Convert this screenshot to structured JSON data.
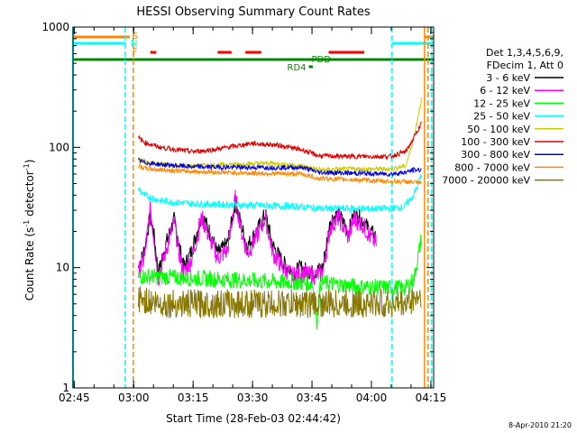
{
  "chart_data": {
    "type": "line",
    "title": "HESSI Observing Summary Count Rates",
    "xlabel": "Start Time (28-Feb-03 02:44:42)",
    "ylabel_main": "Count Rate (s",
    "ylabel_sup1": "-1",
    "ylabel_mid": " detector",
    "ylabel_sup2": "-1",
    "ylabel_end": ")",
    "y_scale": "log",
    "ylim": [
      1,
      1000
    ],
    "x_range_minutes": [
      0,
      91
    ],
    "x_ticks": [
      {
        "t": 0.3,
        "label": "02:45"
      },
      {
        "t": 15.3,
        "label": "03:00"
      },
      {
        "t": 30.3,
        "label": "03:15"
      },
      {
        "t": 45.3,
        "label": "03:30"
      },
      {
        "t": 60.3,
        "label": "03:45"
      },
      {
        "t": 75.3,
        "label": "04:00"
      },
      {
        "t": 90.3,
        "label": "04:15"
      }
    ],
    "y_ticks": [
      {
        "v": 1,
        "label": "1"
      },
      {
        "v": 10,
        "label": "10"
      },
      {
        "v": 100,
        "label": "100"
      },
      {
        "v": 1000,
        "label": "1000"
      }
    ],
    "legend": {
      "placement": "right",
      "header1": "Det 1,3,4,5,6,9,",
      "header2": "FDecim 1, Att 0",
      "entries": [
        {
          "label": "3 - 6 keV",
          "color": "#000000"
        },
        {
          "label": "6 - 12 keV",
          "color": "#ff00ff"
        },
        {
          "label": "12 - 25 keV",
          "color": "#00ff00"
        },
        {
          "label": "25 - 50 keV",
          "color": "#00ffff"
        },
        {
          "label": "50 - 100 keV",
          "color": "#cccc00"
        },
        {
          "label": "100 - 300 keV",
          "color": "#dd0000"
        },
        {
          "label": "300 - 800 keV",
          "color": "#0000dd"
        },
        {
          "label": "800 - 7000 keV",
          "color": "#ff8800"
        },
        {
          "label": "7000 - 20000 keV",
          "color": "#887700"
        }
      ]
    },
    "flag_labels": {
      "S": {
        "text": "S",
        "color": "#ff8800"
      },
      "N": {
        "text": "N",
        "color": "#00ffff"
      },
      "F": {
        "text": "F",
        "color": "#ff8800"
      },
      "PDD": {
        "text": "PDD",
        "color": "#008800"
      },
      "RD4": {
        "text": "RD4",
        "color": "#008800"
      }
    },
    "flags": {
      "saa_S": [
        [
          0,
          14.3
        ],
        [
          88.7,
          91
        ]
      ],
      "night_N": [
        [
          0,
          13.2
        ],
        [
          80.5,
          91
        ]
      ],
      "flare_F": [
        [
          19.5,
          21.0
        ],
        [
          36.5,
          40.0
        ],
        [
          43.5,
          47.5
        ],
        [
          64.5,
          73.5
        ]
      ],
      "pdd_line": [
        [
          0,
          91
        ]
      ],
      "rd4": [
        [
          59.5,
          60.5
        ]
      ]
    },
    "vertical_lines": [
      {
        "t": 13.2,
        "color": "#00ffff",
        "dash": true
      },
      {
        "t": 15.2,
        "color": "#ff8800",
        "dash": true
      },
      {
        "t": 80.5,
        "color": "#00ffff",
        "dash": true
      },
      {
        "t": 88.7,
        "color": "#ff8800",
        "dash": false
      },
      {
        "t": 89.6,
        "color": "#ff8800",
        "dash": true
      },
      {
        "t": 90.5,
        "color": "#00ffff",
        "dash": true
      }
    ],
    "segment_start": 16.5,
    "segment_end": 88.0,
    "series": [
      {
        "name": "3 - 6 keV",
        "color": "#000000",
        "points": [
          [
            16.5,
            10
          ],
          [
            18,
            14
          ],
          [
            19.5,
            27
          ],
          [
            20.5,
            18
          ],
          [
            21.5,
            9
          ],
          [
            23.5,
            16
          ],
          [
            25.5,
            25
          ],
          [
            27,
            14
          ],
          [
            28,
            10
          ],
          [
            30,
            14
          ],
          [
            32.5,
            28
          ],
          [
            35,
            18
          ],
          [
            36.5,
            13
          ],
          [
            39,
            16
          ],
          [
            41,
            35
          ],
          [
            42.5,
            22
          ],
          [
            44,
            15
          ],
          [
            47,
            22
          ],
          [
            48.5,
            28
          ],
          [
            50.5,
            15
          ],
          [
            53,
            11
          ],
          [
            55.5,
            9
          ],
          [
            57.5,
            10
          ],
          [
            60.5,
            9
          ],
          [
            63,
            10
          ],
          [
            65,
            25
          ],
          [
            67,
            28
          ],
          [
            69.5,
            20
          ],
          [
            71,
            28
          ],
          [
            73,
            25
          ],
          [
            75,
            20
          ],
          [
            76.5,
            18
          ]
        ]
      },
      {
        "name": "6 - 12 keV",
        "color": "#ff00ff",
        "points": [
          [
            16.5,
            9
          ],
          [
            18,
            12
          ],
          [
            19.5,
            30
          ],
          [
            20.5,
            17
          ],
          [
            21.5,
            8
          ],
          [
            23.5,
            14
          ],
          [
            25.5,
            24
          ],
          [
            27,
            12
          ],
          [
            28,
            9
          ],
          [
            30,
            12
          ],
          [
            32.5,
            26
          ],
          [
            35,
            16
          ],
          [
            36.5,
            12
          ],
          [
            39,
            14
          ],
          [
            41,
            38
          ],
          [
            42.5,
            20
          ],
          [
            44,
            13
          ],
          [
            47,
            20
          ],
          [
            48.5,
            26
          ],
          [
            50.5,
            13
          ],
          [
            53,
            10
          ],
          [
            55.5,
            8.5
          ],
          [
            57.5,
            9
          ],
          [
            60.5,
            8.5
          ],
          [
            63,
            9
          ],
          [
            65,
            22
          ],
          [
            67,
            26
          ],
          [
            69.5,
            18
          ],
          [
            71,
            25
          ],
          [
            73,
            23
          ],
          [
            75,
            18
          ],
          [
            76.5,
            16
          ]
        ]
      },
      {
        "name": "12 - 25 keV",
        "color": "#00ff00",
        "points": [
          [
            16.5,
            8.5
          ],
          [
            30,
            8.2
          ],
          [
            45,
            7.8
          ],
          [
            58,
            7.5
          ],
          [
            60.5,
            7.3
          ],
          [
            61.5,
            3.5
          ],
          [
            62.5,
            7.5
          ],
          [
            70,
            7
          ],
          [
            80,
            6.8
          ],
          [
            84,
            6.8
          ],
          [
            86,
            8
          ],
          [
            88,
            18
          ]
        ]
      },
      {
        "name": "25 - 50 keV",
        "color": "#00ffff",
        "points": [
          [
            16.5,
            45
          ],
          [
            18,
            40
          ],
          [
            22,
            36
          ],
          [
            30,
            34
          ],
          [
            45,
            33
          ],
          [
            58,
            32
          ],
          [
            62,
            31
          ],
          [
            70,
            31
          ],
          [
            80,
            31
          ],
          [
            83.5,
            32
          ],
          [
            86,
            40
          ],
          [
            88,
            60
          ]
        ]
      },
      {
        "name": "50 - 100 keV",
        "color": "#cccc00",
        "points": [
          [
            16.5,
            80
          ],
          [
            18,
            75
          ],
          [
            22,
            72
          ],
          [
            30,
            70
          ],
          [
            40,
            72
          ],
          [
            50,
            74
          ],
          [
            58,
            70
          ],
          [
            62,
            65
          ],
          [
            70,
            66
          ],
          [
            80,
            66
          ],
          [
            84,
            70
          ],
          [
            86,
            120
          ],
          [
            88,
            260
          ]
        ]
      },
      {
        "name": "100 - 300 keV",
        "color": "#dd0000",
        "points": [
          [
            16.5,
            120
          ],
          [
            18,
            110
          ],
          [
            22,
            100
          ],
          [
            30,
            92
          ],
          [
            35,
            95
          ],
          [
            45,
            108
          ],
          [
            52,
            104
          ],
          [
            58,
            95
          ],
          [
            62,
            85
          ],
          [
            70,
            84
          ],
          [
            80,
            84
          ],
          [
            84,
            92
          ],
          [
            86,
            120
          ],
          [
            88,
            160
          ]
        ]
      },
      {
        "name": "300 - 800 keV",
        "color": "#0000dd",
        "points": [
          [
            16.5,
            78
          ],
          [
            18,
            75
          ],
          [
            22,
            72
          ],
          [
            30,
            69
          ],
          [
            45,
            68
          ],
          [
            58,
            68
          ],
          [
            62,
            62
          ],
          [
            70,
            61
          ],
          [
            80,
            60
          ],
          [
            84,
            62
          ],
          [
            86,
            65
          ],
          [
            88,
            65
          ]
        ]
      },
      {
        "name": "800 - 7000 keV",
        "color": "#ff8800",
        "points": [
          [
            16.5,
            70
          ],
          [
            18,
            67
          ],
          [
            22,
            65
          ],
          [
            30,
            63
          ],
          [
            45,
            61
          ],
          [
            58,
            60
          ],
          [
            62,
            55
          ],
          [
            70,
            54
          ],
          [
            80,
            52
          ],
          [
            84,
            52
          ],
          [
            86,
            51
          ],
          [
            88,
            50
          ]
        ]
      },
      {
        "name": "7000 - 20000 keV",
        "color": "#887700",
        "points": [
          [
            16.5,
            5.5
          ],
          [
            22,
            5
          ],
          [
            30,
            5
          ],
          [
            45,
            5
          ],
          [
            58,
            5
          ],
          [
            62,
            5
          ],
          [
            70,
            5
          ],
          [
            80,
            5
          ],
          [
            84,
            5
          ],
          [
            86,
            5.5
          ],
          [
            88,
            6
          ]
        ]
      }
    ],
    "plot_date": "8-Apr-2010 21:20"
  }
}
